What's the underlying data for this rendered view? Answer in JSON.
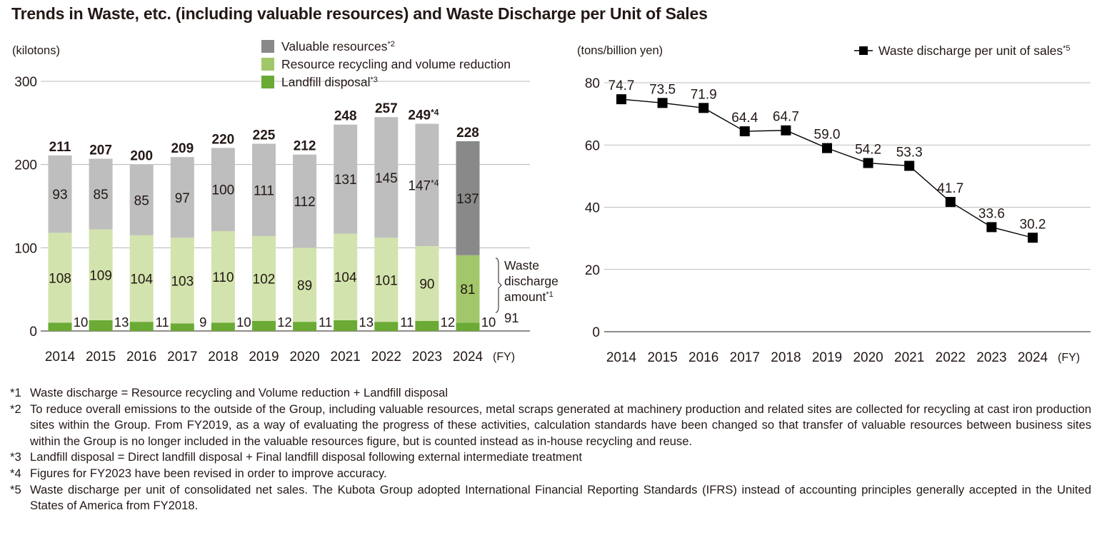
{
  "page": {
    "title": "Trends in Waste, etc. (including valuable resources) and Waste Discharge per Unit of Sales"
  },
  "chart_data": [
    {
      "type": "bar",
      "stacked": true,
      "unit_label": "(kilotons)",
      "x_unit": "(FY)",
      "categories": [
        "2014",
        "2015",
        "2016",
        "2017",
        "2018",
        "2019",
        "2020",
        "2021",
        "2022",
        "2023",
        "2024"
      ],
      "ylim": [
        0,
        300
      ],
      "yticks": [
        0,
        100,
        200,
        300
      ],
      "grid": true,
      "legend_position": "top",
      "series": [
        {
          "name": "Landfill disposal*3",
          "color": "#6aaa35",
          "highlight_color": "#6aaa35",
          "values": [
            10,
            13,
            11,
            9,
            10,
            12,
            11,
            13,
            11,
            12,
            10
          ]
        },
        {
          "name": "Resource recycling and volume reduction",
          "color": "#d2e3ad",
          "highlight_color": "#a2c76a",
          "values": [
            108,
            109,
            104,
            103,
            110,
            102,
            89,
            104,
            101,
            90,
            81
          ]
        },
        {
          "name": "Valuable resources*2",
          "color": "#bebebe",
          "highlight_color": "#898989",
          "values": [
            93,
            85,
            85,
            97,
            100,
            111,
            112,
            131,
            145,
            147,
            137
          ]
        }
      ],
      "series_labels": {
        "Valuable resources*2": [
          "93",
          "85",
          "85",
          "97",
          "100",
          "111",
          "112",
          "131",
          "145",
          "147*4",
          "137"
        ]
      },
      "totals": [
        "211",
        "207",
        "200",
        "209",
        "220",
        "225",
        "212",
        "248",
        "257",
        "249*4",
        "228"
      ],
      "highlight_index": 10,
      "annotation": {
        "lines": [
          "Waste",
          "discharge",
          "amount*1"
        ],
        "value": "91"
      }
    },
    {
      "type": "line",
      "unit_label": "(tons/billion yen)",
      "x_unit": "(FY)",
      "categories": [
        "2014",
        "2015",
        "2016",
        "2017",
        "2018",
        "2019",
        "2020",
        "2021",
        "2022",
        "2023",
        "2024"
      ],
      "ylim": [
        0,
        80
      ],
      "yticks": [
        0,
        20,
        40,
        60,
        80
      ],
      "grid": true,
      "legend_position": "top-right",
      "series": [
        {
          "name": "Waste discharge per unit of sales*5",
          "color": "#000000",
          "values": [
            74.7,
            73.5,
            71.9,
            64.4,
            64.7,
            59.0,
            54.2,
            53.3,
            41.7,
            33.6,
            30.2
          ]
        }
      ],
      "value_labels": [
        "74.7",
        "73.5",
        "71.9",
        "64.4",
        "64.7",
        "59.0",
        "54.2",
        "53.3",
        "41.7",
        "33.6",
        "30.2"
      ]
    }
  ],
  "footnotes": [
    {
      "mark": "*1",
      "text": "Waste discharge = Resource recycling and Volume reduction + Landfill disposal"
    },
    {
      "mark": "*2",
      "text": "To reduce overall emissions to the outside of the Group, including valuable resources, metal scraps generated at machinery production and related sites are collected for recycling at cast iron production sites within the Group. From FY2019, as a way of evaluating the progress of these activities, calculation standards have been changed so that transfer of valuable resources between business sites within the Group is no longer included in the valuable resources figure, but is counted instead as in-house recycling and reuse."
    },
    {
      "mark": "*3",
      "text": "Landfill disposal = Direct landfill disposal + Final landfill disposal following external intermediate treatment"
    },
    {
      "mark": "*4",
      "text": "Figures for FY2023 have been revised in order to improve accuracy."
    },
    {
      "mark": "*5",
      "text": "Waste discharge per unit of consolidated net sales. The Kubota Group adopted International Financial Reporting Standards (IFRS) instead of accounting principles generally accepted in the United States of America from FY2018."
    }
  ]
}
